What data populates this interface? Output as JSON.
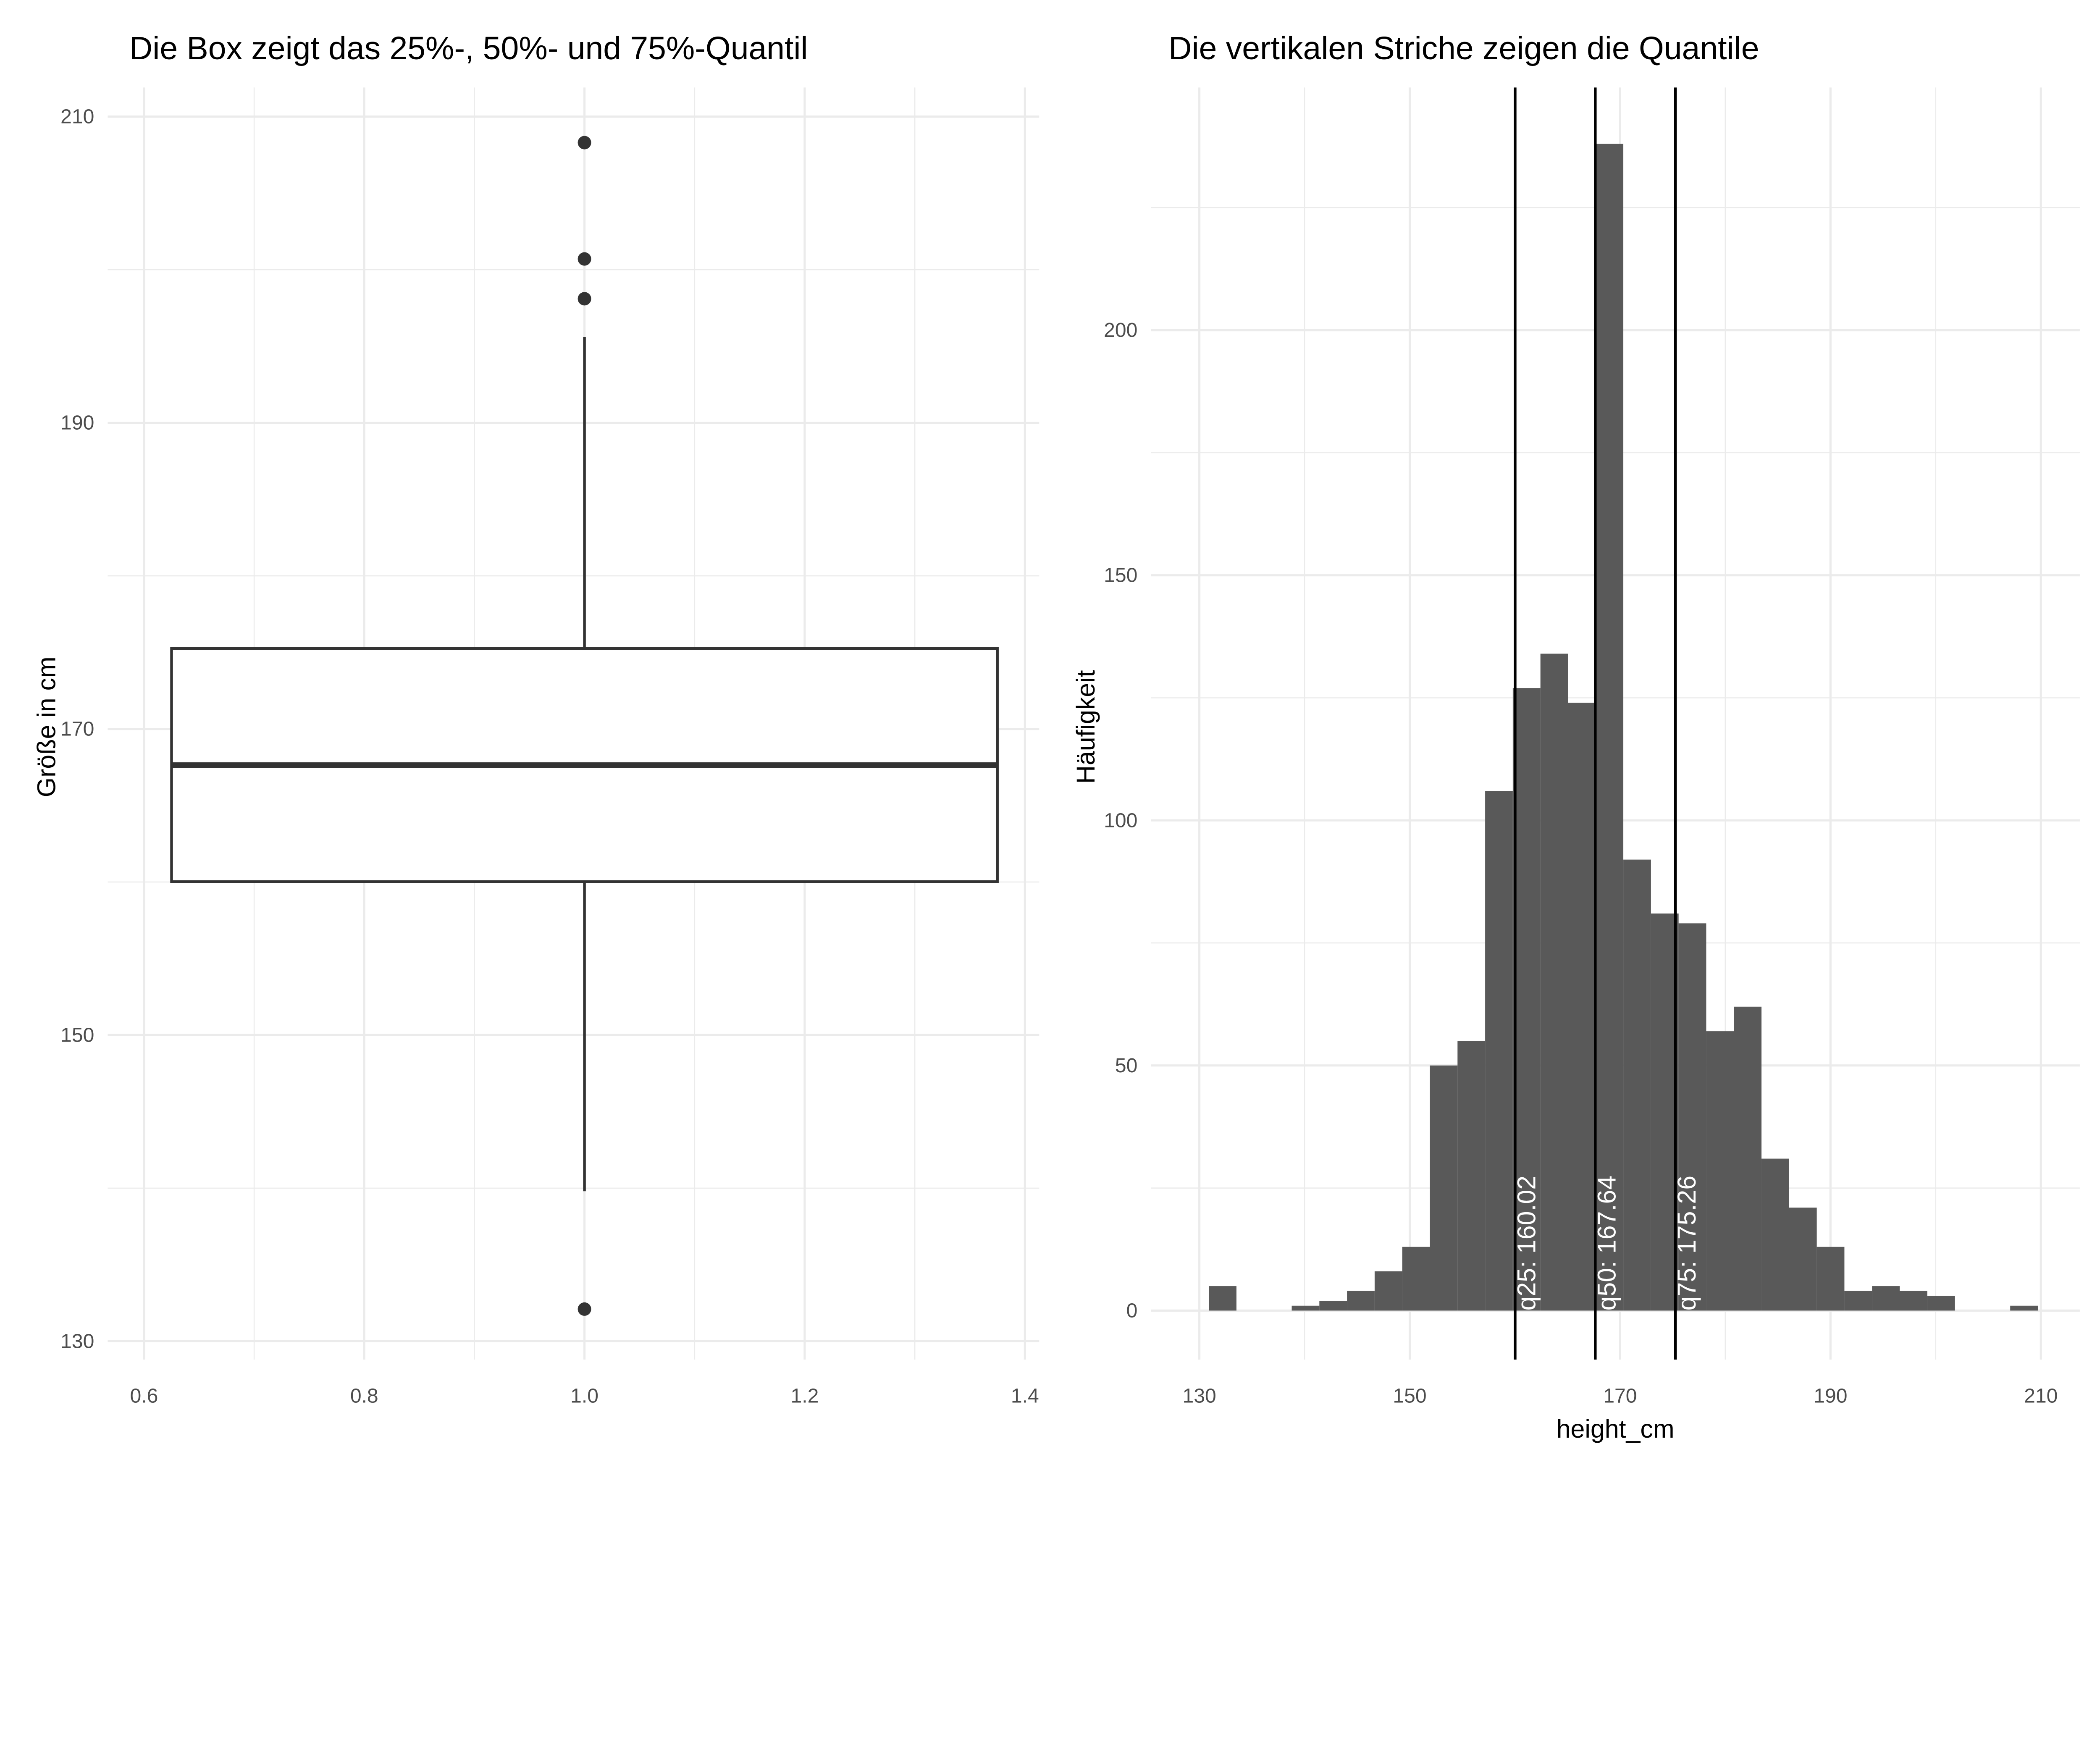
{
  "chart_data": [
    {
      "type": "box",
      "title": "Die Box zeigt das 25%-, 50%- und 75%-Quantil",
      "xlabel": "",
      "ylabel": "Größe in cm",
      "xlim": [
        0.567,
        1.413
      ],
      "ylim": [
        128.8,
        211.9
      ],
      "xticks": [
        0.6,
        0.8,
        1.0,
        1.2,
        1.4
      ],
      "xtick_labels": [
        "0.6",
        "0.8",
        "1.0",
        "1.2",
        "1.4"
      ],
      "yticks": [
        130,
        150,
        170,
        190,
        210
      ],
      "ytick_labels": [
        "130",
        "150",
        "170",
        "190",
        "210"
      ],
      "grid": true,
      "box": {
        "x": 1.0,
        "x_range": [
          0.625,
          1.375
        ],
        "q1": 160.02,
        "median": 167.64,
        "q3": 175.26,
        "whisker_low": 139.8,
        "whisker_high": 195.6
      },
      "outliers": [
        132.1,
        198.1,
        200.7,
        208.3
      ],
      "colors": {
        "box_line": "#333333",
        "fill": "#ffffff",
        "grid": "#ebebeb"
      }
    },
    {
      "type": "bar",
      "subtype": "histogram",
      "title": "Die vertikalen Striche zeigen die Quantile",
      "xlabel": "height_cm",
      "ylabel": "Häufigkeit",
      "xlim": [
        125.4,
        213.7
      ],
      "ylim": [
        -10,
        249.5
      ],
      "xticks": [
        130,
        150,
        170,
        190,
        210
      ],
      "xtick_labels": [
        "130",
        "150",
        "170",
        "190",
        "210"
      ],
      "yticks": [
        0,
        50,
        100,
        150,
        200
      ],
      "ytick_labels": [
        "0",
        "50",
        "100",
        "150",
        "200"
      ],
      "grid": true,
      "bin_start": 130.9,
      "bin_width": 2.627,
      "counts": [
        5,
        0,
        0,
        1,
        2,
        4,
        8,
        13,
        50,
        55,
        106,
        127,
        134,
        124,
        238,
        92,
        81,
        79,
        57,
        62,
        31,
        21,
        13,
        4,
        5,
        4,
        3,
        0,
        0,
        1
      ],
      "quantile_lines": [
        {
          "value": 160.02,
          "label": "q25: 160.02"
        },
        {
          "value": 167.64,
          "label": "q50: 167.64"
        },
        {
          "value": 175.26,
          "label": "q75: 175.26"
        }
      ],
      "colors": {
        "bar": "#595959",
        "line": "#000000",
        "label": "#ffffff"
      }
    }
  ]
}
